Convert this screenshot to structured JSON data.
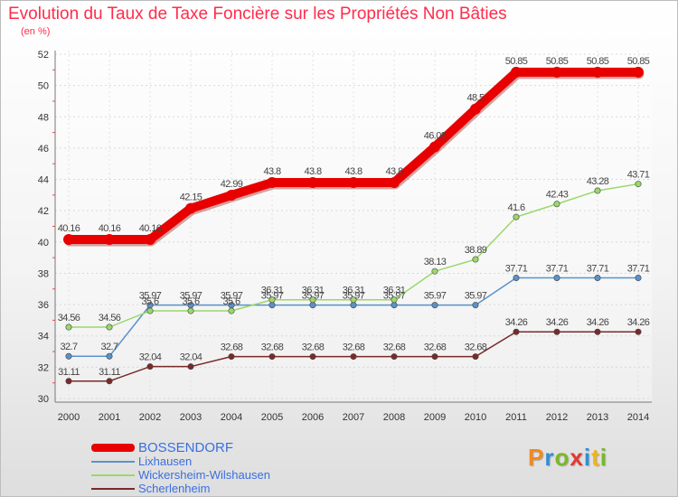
{
  "title": "Evolution du Taux de Taxe Foncière sur les Propriétés Non Bâties",
  "subtitle": "(en %)",
  "logo": {
    "letters": [
      {
        "ch": "P",
        "color": "#f08a1c"
      },
      {
        "ch": "r",
        "color": "#2e8fd6"
      },
      {
        "ch": "o",
        "color": "#7ab829"
      },
      {
        "ch": "x",
        "color": "#e33a2f"
      },
      {
        "ch": "i",
        "color": "#2e8fd6"
      },
      {
        "ch": "t",
        "color": "#f0b419"
      },
      {
        "ch": "i",
        "color": "#7ab829"
      }
    ]
  },
  "chart_data": {
    "type": "line",
    "x": [
      "2000",
      "2001",
      "2002",
      "2003",
      "2004",
      "2005",
      "2006",
      "2007",
      "2008",
      "2009",
      "2010",
      "2011",
      "2012",
      "2013",
      "2014"
    ],
    "ylim": [
      30,
      52
    ],
    "yticks": [
      "30",
      "32",
      "34",
      "36",
      "38",
      "40",
      "42",
      "44",
      "46",
      "48",
      "50",
      "52"
    ],
    "grid": true,
    "legend_position": "bottom-left",
    "series": [
      {
        "name": "BOSSENDORF",
        "color": "#e80000",
        "main": true,
        "values": [
          40.16,
          40.16,
          40.16,
          42.15,
          42.99,
          43.8,
          43.8,
          43.8,
          43.8,
          46.08,
          48.5,
          50.85,
          50.85,
          50.85,
          50.85
        ],
        "labels": [
          "40.16",
          "40.16",
          "40.16",
          "42.15",
          "42.99",
          "43.8",
          "43.8",
          "43.8",
          "43.8",
          "46.08",
          "48.5",
          "50.85",
          "50.85",
          "50.85",
          "50.85"
        ]
      },
      {
        "name": "Lixhausen",
        "color": "#5b92c9",
        "main": false,
        "values": [
          32.7,
          32.7,
          35.97,
          35.97,
          35.97,
          35.97,
          35.97,
          35.97,
          35.97,
          35.97,
          35.97,
          37.71,
          37.71,
          37.71,
          37.71
        ],
        "labels": [
          "32.7",
          "32.7",
          "35.97",
          "35.97",
          "35.97",
          "35.97",
          "35.97",
          "35.97",
          "35.97",
          "35.97",
          "35.97",
          "37.71",
          "37.71",
          "37.71",
          "37.71"
        ]
      },
      {
        "name": "Wickersheim-Wilshausen",
        "color": "#9ad86a",
        "main": false,
        "values": [
          34.56,
          34.56,
          35.6,
          35.6,
          35.6,
          36.31,
          36.31,
          36.31,
          36.31,
          38.13,
          38.89,
          41.6,
          42.43,
          43.28,
          43.71
        ],
        "labels": [
          "34.56",
          "34.56",
          "35.6",
          "35.6",
          "35.6",
          "36.31",
          "36.31",
          "36.31",
          "36.31",
          "38.13",
          "38.89",
          "41.6",
          "42.43",
          "43.28",
          "43.71"
        ]
      },
      {
        "name": "Scherlenheim",
        "color": "#7a2a2a",
        "main": false,
        "values": [
          31.11,
          31.11,
          32.04,
          32.04,
          32.68,
          32.68,
          32.68,
          32.68,
          32.68,
          32.68,
          32.68,
          34.26,
          34.26,
          34.26,
          34.26
        ],
        "labels": [
          "31.11",
          "31.11",
          "32.04",
          "32.04",
          "32.68",
          "32.68",
          "32.68",
          "32.68",
          "32.68",
          "32.68",
          "32.68",
          "34.26",
          "34.26",
          "34.26",
          "34.26"
        ]
      }
    ]
  }
}
